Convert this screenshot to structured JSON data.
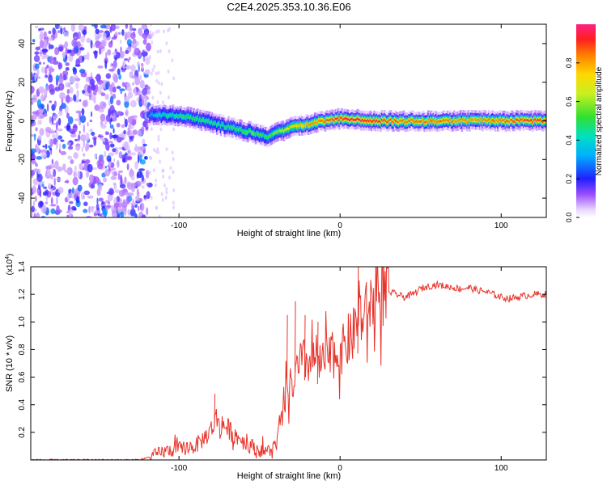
{
  "title": "C2E4.2025.353.10.36.E06",
  "chart_data": [
    {
      "type": "heatmap",
      "xlabel": "Height of straight line (km)",
      "ylabel": "Frequency (Hz)",
      "xlim": [
        -192,
        128
      ],
      "ylim": [
        -50,
        50
      ],
      "xticks": [
        -100,
        0,
        100
      ],
      "yticks": [
        -40,
        -20,
        0,
        20,
        40
      ],
      "colorbar": {
        "label": "Normalized spectral amplitude",
        "range": [
          0,
          1
        ],
        "ticks": [
          0.0,
          0.2,
          0.4,
          0.6,
          0.8
        ]
      },
      "noise_region_x": [
        -192,
        -118
      ],
      "ridge": {
        "description_points": [
          {
            "x": -118,
            "freq": 3,
            "amp": 0.35
          },
          {
            "x": -105,
            "freq": 3,
            "amp": 0.45
          },
          {
            "x": -95,
            "freq": 2,
            "amp": 0.5
          },
          {
            "x": -85,
            "freq": 0,
            "amp": 0.5
          },
          {
            "x": -75,
            "freq": -2,
            "amp": 0.45
          },
          {
            "x": -65,
            "freq": -4,
            "amp": 0.5
          },
          {
            "x": -55,
            "freq": -6,
            "amp": 0.55
          },
          {
            "x": -45,
            "freq": -8,
            "amp": 0.5
          },
          {
            "x": -38,
            "freq": -6,
            "amp": 0.6
          },
          {
            "x": -30,
            "freq": -3,
            "amp": 0.7
          },
          {
            "x": -20,
            "freq": -2,
            "amp": 0.8
          },
          {
            "x": -10,
            "freq": 0,
            "amp": 0.85
          },
          {
            "x": 0,
            "freq": 1,
            "amp": 0.9
          },
          {
            "x": 10,
            "freq": 1,
            "amp": 0.95
          },
          {
            "x": 20,
            "freq": 0,
            "amp": 0.92
          },
          {
            "x": 40,
            "freq": 0,
            "amp": 0.85
          },
          {
            "x": 60,
            "freq": 0,
            "amp": 0.85
          },
          {
            "x": 80,
            "freq": 0,
            "amp": 0.8
          },
          {
            "x": 100,
            "freq": 0,
            "amp": 0.85
          },
          {
            "x": 120,
            "freq": 0,
            "amp": 0.9
          }
        ]
      }
    },
    {
      "type": "line",
      "xlabel": "Height of straight line (km)",
      "ylabel": "SNR (10 * v/v)",
      "multiplier": "(x10",
      "multiplier_exp": "4",
      "xlim": [
        -192,
        128
      ],
      "ylim": [
        0,
        1.4
      ],
      "xticks": [
        -100,
        0,
        100
      ],
      "yticks": [
        0.2,
        0.4,
        0.6,
        0.8,
        1.0,
        1.2,
        1.4
      ],
      "series": [
        {
          "name": "SNR",
          "color": "#e8332a",
          "x": [
            -192,
            -150,
            -125,
            -118,
            -110,
            -100,
            -90,
            -85,
            -80,
            -77,
            -72,
            -65,
            -58,
            -50,
            -45,
            -40,
            -38,
            -35,
            -33,
            -30,
            -28,
            -25,
            -22,
            -20,
            -15,
            -12,
            -10,
            -5,
            0,
            5,
            8,
            10,
            12,
            15,
            18,
            20,
            25,
            30,
            35,
            40,
            45,
            50,
            55,
            60,
            65,
            70,
            75,
            80,
            85,
            90,
            95,
            100,
            105,
            110,
            115,
            120,
            128
          ],
          "y": [
            0.0,
            0.0,
            0.0,
            0.02,
            0.06,
            0.08,
            0.1,
            0.15,
            0.22,
            0.3,
            0.25,
            0.18,
            0.12,
            0.07,
            0.06,
            0.1,
            0.2,
            0.35,
            0.5,
            0.55,
            0.58,
            0.7,
            0.72,
            0.7,
            0.75,
            0.68,
            0.72,
            0.75,
            0.78,
            0.85,
            0.9,
            1.0,
            1.05,
            1.05,
            1.1,
            1.15,
            1.2,
            1.22,
            1.2,
            1.18,
            1.2,
            1.24,
            1.26,
            1.27,
            1.26,
            1.25,
            1.24,
            1.25,
            1.23,
            1.22,
            1.2,
            1.18,
            1.17,
            1.18,
            1.19,
            1.2,
            1.2
          ]
        }
      ],
      "spikes": [
        {
          "x": -78,
          "y": 0.48
        },
        {
          "x": -33,
          "y": 1.05
        },
        {
          "x": -28,
          "y": 1.15
        },
        {
          "x": -22,
          "y": 1.05
        },
        {
          "x": -14,
          "y": 1.0
        },
        {
          "x": 11,
          "y": 1.4
        }
      ]
    }
  ]
}
